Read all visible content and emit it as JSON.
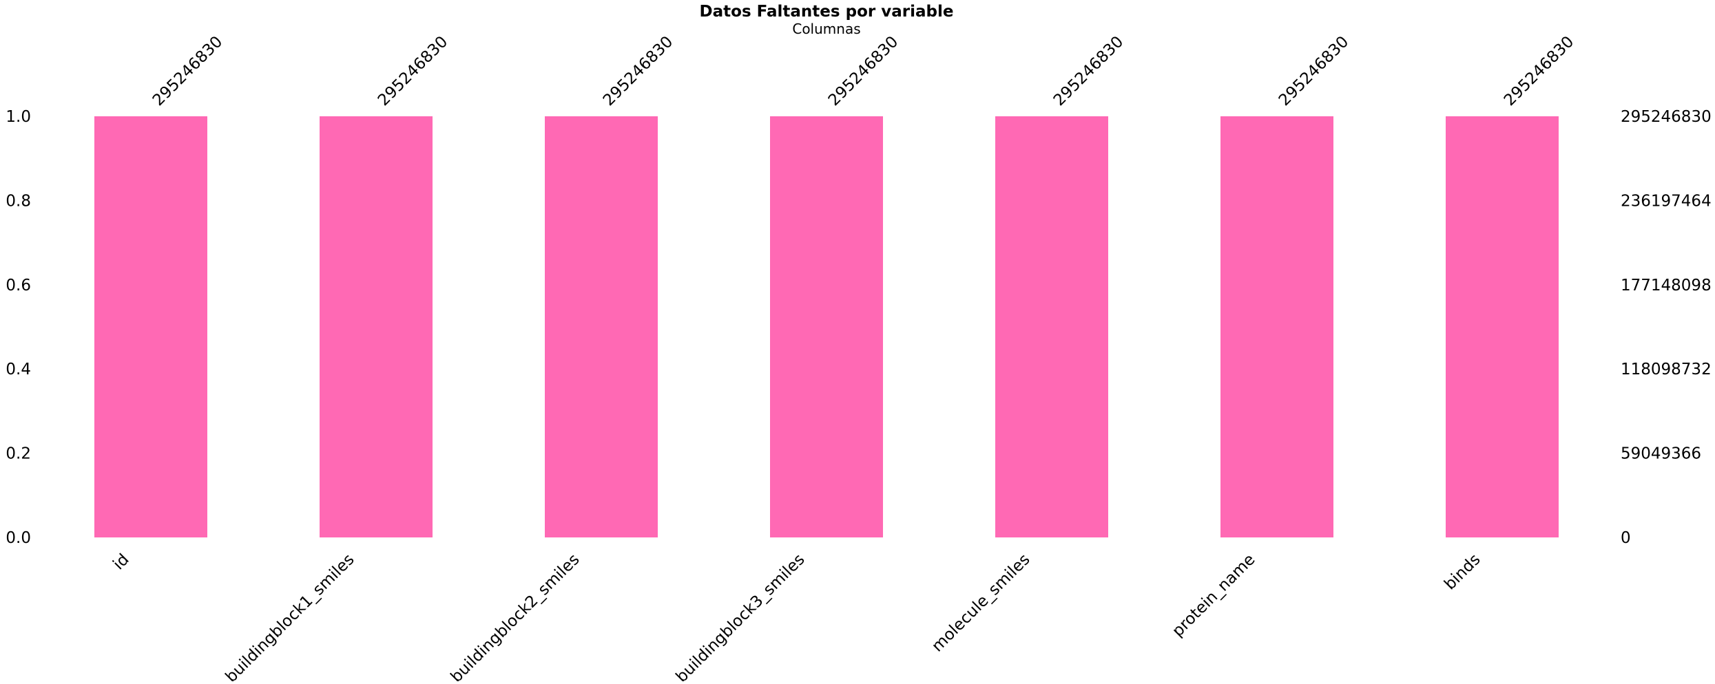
{
  "chart_data": {
    "type": "bar",
    "title": "Datos Faltantes por variable",
    "subtitle": "Columnas",
    "categories": [
      "id",
      "buildingblock1_smiles",
      "buildingblock2_smiles",
      "buildingblock3_smiles",
      "molecule_smiles",
      "protein_name",
      "binds"
    ],
    "values": [
      1.0,
      1.0,
      1.0,
      1.0,
      1.0,
      1.0,
      1.0
    ],
    "counts": [
      "295246830",
      "295246830",
      "295246830",
      "295246830",
      "295246830",
      "295246830",
      "295246830"
    ],
    "ylim": [
      0,
      1.0
    ],
    "left_ticks": [
      "0.0",
      "0.2",
      "0.4",
      "0.6",
      "0.8",
      "1.0"
    ],
    "right_ticks": [
      "0",
      "59049366",
      "118098732",
      "177148098",
      "236197464",
      "295246830"
    ],
    "bar_color": "#ff69b4",
    "grid": false,
    "legend": "none"
  }
}
